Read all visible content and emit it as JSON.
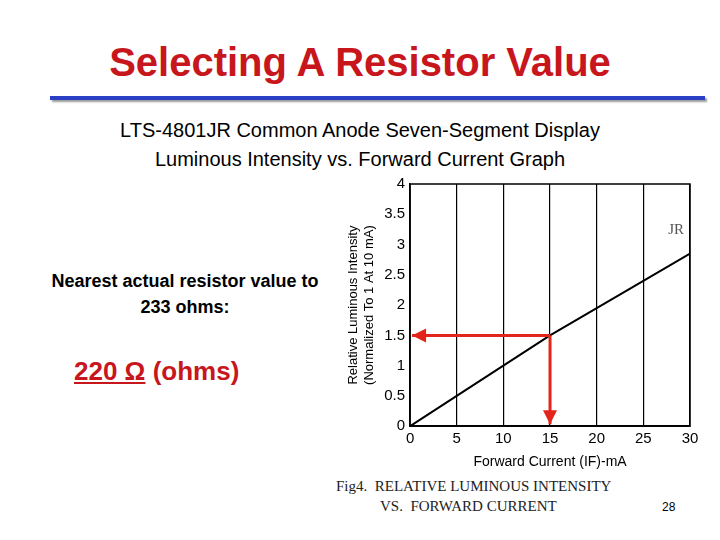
{
  "slide": {
    "title": "Selecting A Resistor Value",
    "subtitle": [
      "LTS-4801JR Common Anode Seven-Segment Display",
      "Luminous Intensity vs. Forward Current Graph"
    ],
    "note": "Nearest actual resistor value to 233 ohms:",
    "answer": {
      "value_text": "220 Ω",
      "unit_text": "(ohms)"
    },
    "caption": [
      "Fig4.  RELATIVE LUMINOUS INTENSITY",
      "VS.  FORWARD CURRENT"
    ],
    "page": "28"
  },
  "chart_data": {
    "type": "line",
    "x_label": "Forward Current (IF)-mA",
    "y_label": [
      "Relative Luminous Intensity",
      "(Normalized To 1 At 10 mA)"
    ],
    "x": [
      0,
      5,
      10,
      15,
      20,
      25,
      30
    ],
    "series": [
      {
        "name": "JR",
        "color": "#000000",
        "values": [
          0,
          0.5,
          1.0,
          1.5,
          1.95,
          2.4,
          2.85
        ]
      }
    ],
    "xlim": [
      0,
      30
    ],
    "xticks": [
      0,
      5,
      10,
      15,
      20,
      25,
      30
    ],
    "ylim": [
      0,
      4
    ],
    "yticks": [
      0,
      0.5,
      1,
      1.5,
      2,
      2.5,
      3,
      3.5,
      4
    ],
    "grid": "x",
    "reading": {
      "x": 15,
      "y": 1.5,
      "color": "#e3241b"
    }
  }
}
